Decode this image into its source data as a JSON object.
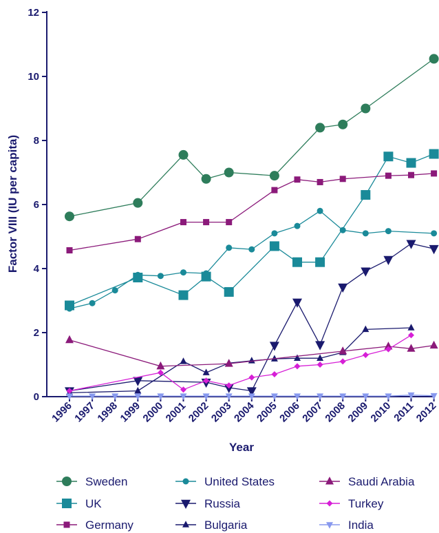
{
  "chart_data": {
    "type": "line",
    "xlabel": "Year",
    "ylabel": "Factor VIII (IU per capita)",
    "ylim": [
      0,
      12
    ],
    "yticks": [
      0,
      2,
      4,
      6,
      8,
      10,
      12
    ],
    "categories": [
      "1996",
      "1997",
      "1998",
      "1999",
      "2000",
      "2001",
      "2002",
      "2003",
      "2004",
      "2005",
      "2006",
      "2007",
      "2008",
      "2009",
      "2010",
      "2011",
      "2012"
    ],
    "legend_position": "bottom",
    "series": [
      {
        "name": "Sweden",
        "color": "#2e7d5b",
        "marker": "circle",
        "size": 7,
        "points": [
          [
            1996,
            5.63
          ],
          [
            1999,
            6.05
          ],
          [
            2001,
            7.55
          ],
          [
            2002,
            6.8
          ],
          [
            2003,
            7.0
          ],
          [
            2005,
            6.9
          ],
          [
            2007,
            8.4
          ],
          [
            2008,
            8.5
          ],
          [
            2009,
            9.0
          ],
          [
            2012,
            10.55
          ]
        ]
      },
      {
        "name": "UK",
        "color": "#1a8a99",
        "marker": "square",
        "size": 7,
        "points": [
          [
            1996,
            2.85
          ],
          [
            1999,
            3.72
          ],
          [
            2001,
            3.17
          ],
          [
            2002,
            3.75
          ],
          [
            2003,
            3.27
          ],
          [
            2005,
            4.7
          ],
          [
            2006,
            4.2
          ],
          [
            2007,
            4.2
          ],
          [
            2009,
            6.3
          ],
          [
            2010,
            7.5
          ],
          [
            2011,
            7.3
          ],
          [
            2012,
            7.58
          ]
        ]
      },
      {
        "name": "Germany",
        "color": "#8b1a7a",
        "marker": "square",
        "size": 4.5,
        "points": [
          [
            1996,
            4.57
          ],
          [
            1999,
            4.92
          ],
          [
            2001,
            5.45
          ],
          [
            2002,
            5.45
          ],
          [
            2003,
            5.45
          ],
          [
            2005,
            6.45
          ],
          [
            2006,
            6.78
          ],
          [
            2007,
            6.7
          ],
          [
            2008,
            6.8
          ],
          [
            2010,
            6.9
          ],
          [
            2011,
            6.92
          ],
          [
            2012,
            6.97
          ]
        ]
      },
      {
        "name": "United States",
        "color": "#1a8a99",
        "marker": "circle",
        "size": 4.5,
        "points": [
          [
            1996,
            2.75
          ],
          [
            1997,
            2.92
          ],
          [
            1998,
            3.32
          ],
          [
            1999,
            3.8
          ],
          [
            2000,
            3.77
          ],
          [
            2001,
            3.88
          ],
          [
            2002,
            3.85
          ],
          [
            2003,
            4.65
          ],
          [
            2004,
            4.6
          ],
          [
            2005,
            5.1
          ],
          [
            2006,
            5.33
          ],
          [
            2007,
            5.8
          ],
          [
            2008,
            5.2
          ],
          [
            2009,
            5.1
          ],
          [
            2010,
            5.17
          ],
          [
            2012,
            5.1
          ]
        ]
      },
      {
        "name": "Russia",
        "color": "#1a1a6e",
        "marker": "triangle-down",
        "size": 7,
        "points": [
          [
            1996,
            0.18
          ],
          [
            1999,
            0.5
          ],
          [
            2002,
            0.45
          ],
          [
            2003,
            0.28
          ],
          [
            2004,
            0.18
          ],
          [
            2005,
            1.6
          ],
          [
            2006,
            2.95
          ],
          [
            2007,
            1.62
          ],
          [
            2008,
            3.42
          ],
          [
            2009,
            3.92
          ],
          [
            2010,
            4.28
          ],
          [
            2011,
            4.78
          ],
          [
            2012,
            4.62
          ]
        ]
      },
      {
        "name": "Bulgaria",
        "color": "#1a1a6e",
        "marker": "triangle-up",
        "size": 5,
        "points": [
          [
            1996,
            0.12
          ],
          [
            1999,
            0.18
          ],
          [
            2001,
            1.1
          ],
          [
            2002,
            0.75
          ],
          [
            2003,
            1.05
          ],
          [
            2004,
            1.12
          ],
          [
            2005,
            1.18
          ],
          [
            2006,
            1.2
          ],
          [
            2007,
            1.2
          ],
          [
            2008,
            1.38
          ],
          [
            2009,
            2.1
          ],
          [
            2011,
            2.15
          ]
        ]
      },
      {
        "name": "Saudi Arabia",
        "color": "#8b1a7a",
        "marker": "triangle-up",
        "size": 6,
        "points": [
          [
            1996,
            1.77
          ],
          [
            2000,
            0.95
          ],
          [
            2003,
            1.03
          ],
          [
            2008,
            1.42
          ],
          [
            2010,
            1.57
          ],
          [
            2011,
            1.5
          ],
          [
            2012,
            1.6
          ]
        ]
      },
      {
        "name": "Turkey",
        "color": "#d61fd6",
        "marker": "diamond",
        "size": 4.5,
        "points": [
          [
            1996,
            0.18
          ],
          [
            2000,
            0.75
          ],
          [
            2001,
            0.22
          ],
          [
            2002,
            0.5
          ],
          [
            2003,
            0.35
          ],
          [
            2004,
            0.6
          ],
          [
            2005,
            0.7
          ],
          [
            2006,
            0.95
          ],
          [
            2007,
            1.0
          ],
          [
            2008,
            1.1
          ],
          [
            2009,
            1.3
          ],
          [
            2010,
            1.48
          ],
          [
            2011,
            1.92
          ]
        ]
      },
      {
        "name": "India",
        "color": "#8899ee",
        "marker": "triangle-down",
        "size": 5,
        "points": [
          [
            1996,
            0.02
          ],
          [
            1997,
            0.02
          ],
          [
            1998,
            0.02
          ],
          [
            1999,
            0.02
          ],
          [
            2000,
            0.02
          ],
          [
            2001,
            0.02
          ],
          [
            2002,
            0.02
          ],
          [
            2003,
            0.02
          ],
          [
            2004,
            0.02
          ],
          [
            2005,
            0.02
          ],
          [
            2006,
            0.02
          ],
          [
            2007,
            0.02
          ],
          [
            2008,
            0.02
          ],
          [
            2009,
            0.02
          ],
          [
            2010,
            0.02
          ],
          [
            2011,
            0.05
          ],
          [
            2012,
            0.03
          ]
        ]
      }
    ],
    "legend_order": [
      "Sweden",
      "United States",
      "Saudi Arabia",
      "UK",
      "Russia",
      "Turkey",
      "Germany",
      "Bulgaria",
      "India"
    ]
  }
}
